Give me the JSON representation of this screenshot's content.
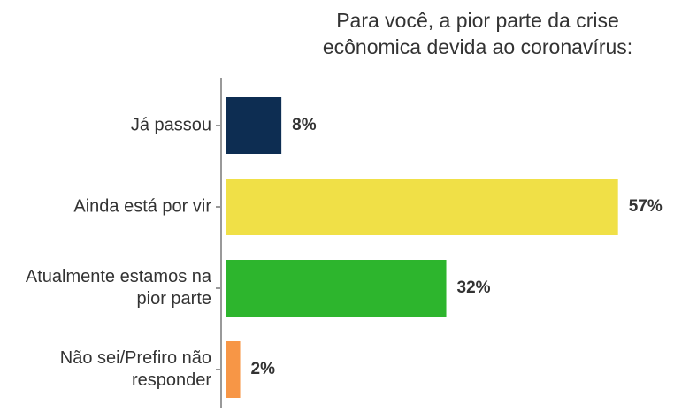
{
  "chart_data": {
    "type": "bar",
    "orientation": "horizontal",
    "title": "Para você, a pior parte da crise ecônomica devida ao coronavírus:",
    "categories": [
      "Já passou",
      "Ainda está por vir",
      "Atualmente estamos na pior parte",
      "Não sei/Prefiro não responder"
    ],
    "values": [
      8,
      57,
      32,
      2
    ],
    "value_labels": [
      "8%",
      "57%",
      "32%",
      "2%"
    ],
    "colors": [
      "#0d2d52",
      "#f0e047",
      "#2db52d",
      "#f79646"
    ],
    "xlim": [
      0,
      60
    ]
  }
}
